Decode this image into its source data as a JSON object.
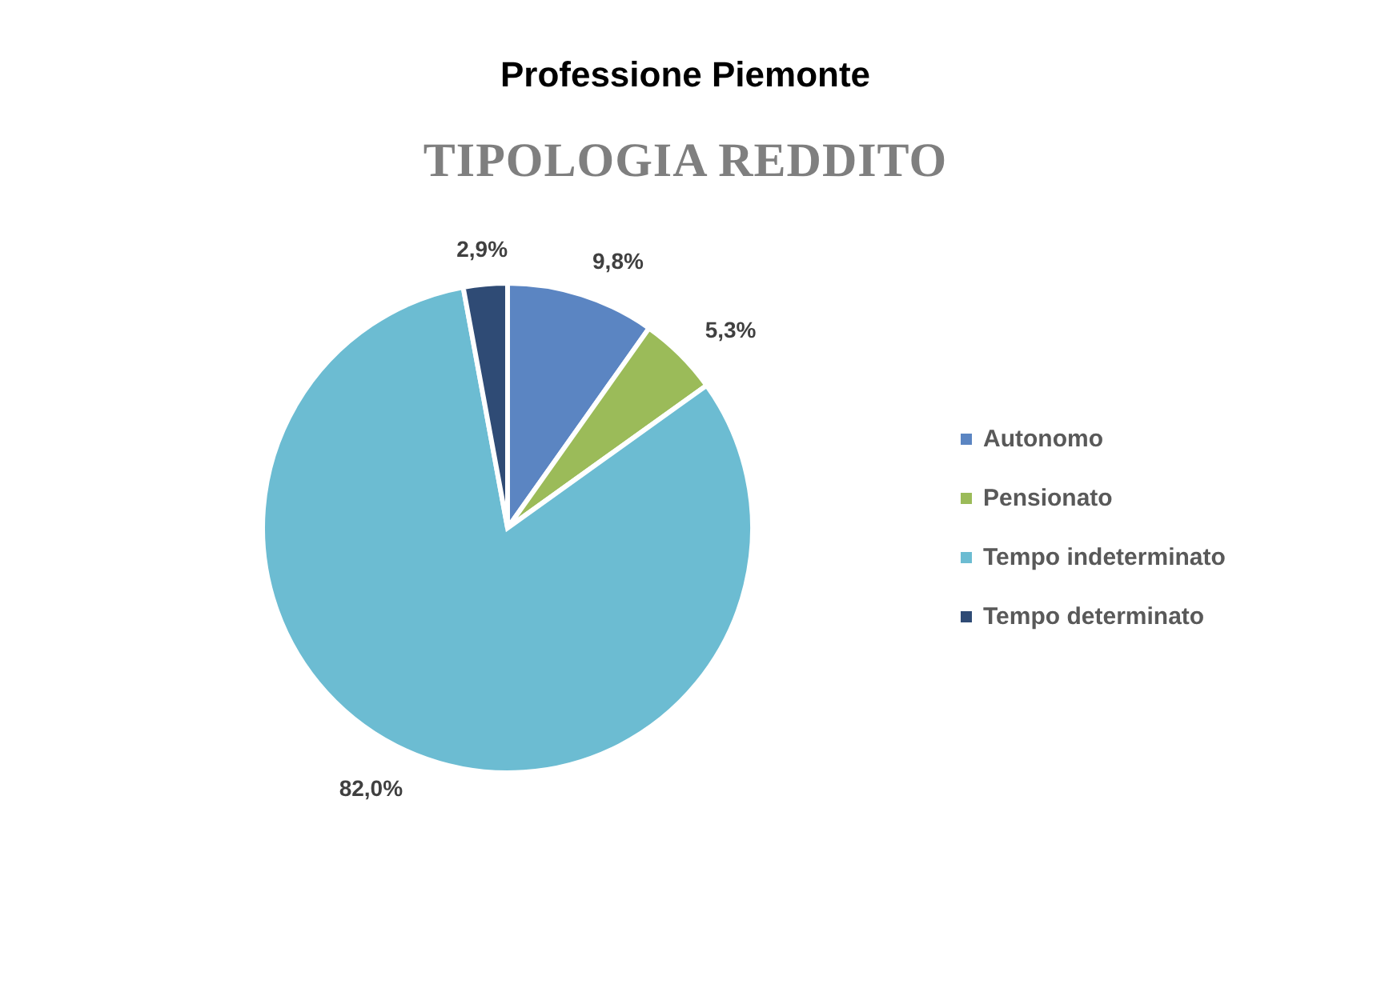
{
  "chart_data": {
    "type": "pie",
    "title": "Professione Piemonte",
    "subtitle": "TIPOLOGIA REDDITO",
    "categories": [
      "Autonomo",
      "Pensionato",
      "Tempo indeterminato",
      "Tempo determinato"
    ],
    "values": [
      9.8,
      5.3,
      82.0,
      2.9
    ],
    "value_labels": [
      "9,8%",
      "5,3%",
      "82,0%",
      "2,9%"
    ],
    "colors": [
      "#5b85c2",
      "#9bbb59",
      "#6cbcd2",
      "#2f4b75"
    ],
    "legend": "right"
  }
}
